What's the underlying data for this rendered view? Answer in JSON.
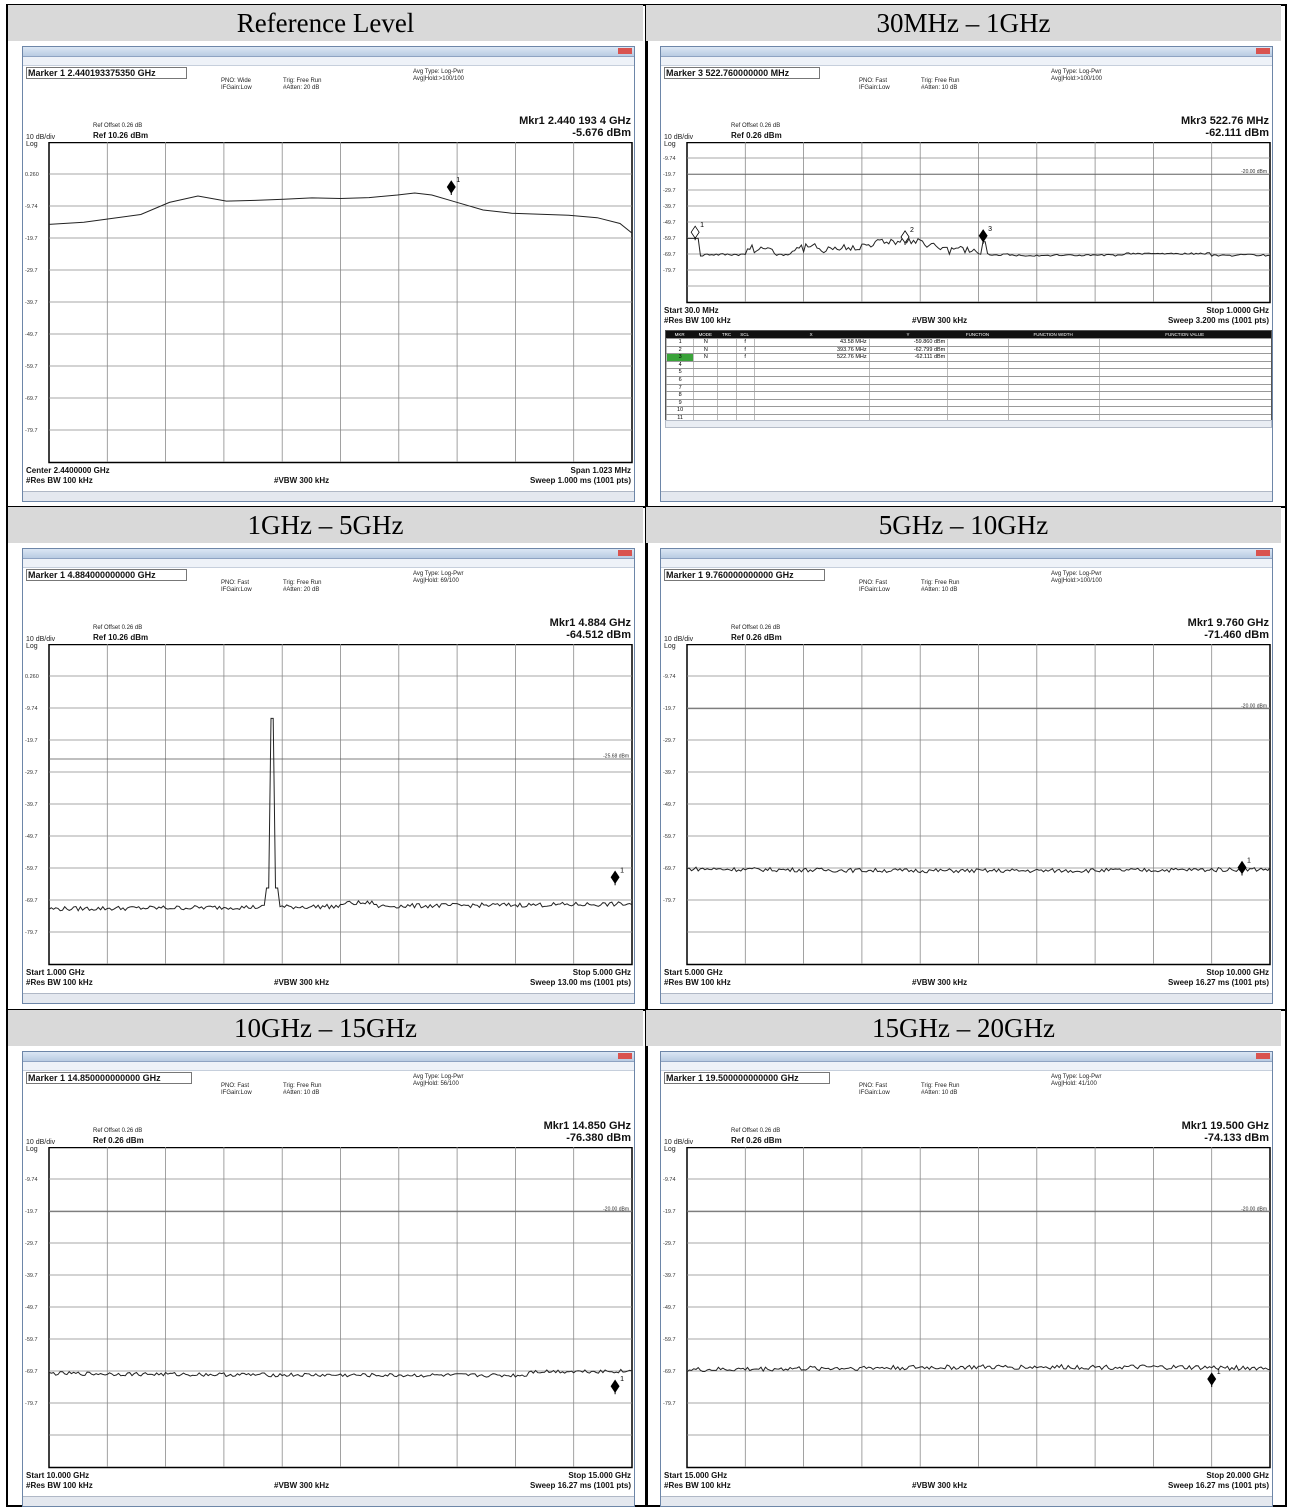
{
  "panels": [
    {
      "id": "ref",
      "header": "Reference Level",
      "marker_field": "Marker 1 2.440193375350 GHz",
      "pno": "PNO: Wide",
      "ifgain": "IFGain:Low",
      "trig": "Trig: Free Run",
      "atten": "#Atten: 20 dB",
      "avg_type": "Avg Type: Log-Pwr",
      "avg_hold": "Avg|Hold:>100/100",
      "ref_offset": "Ref Offset 0.26 dB",
      "scale": "10 dB/div",
      "ref": "Ref 10.26 dBm",
      "log": "Log",
      "mkr_freq": "Mkr1 2.440 193 4 GHz",
      "mkr_amp": "-5.676 dBm",
      "foot_left1": "Center 2.4400000 GHz",
      "foot_left2": "#Res BW 100 kHz",
      "foot_mid": "#VBW 300 kHz",
      "foot_right1": "Span 1.023 MHz",
      "foot_right2": "Sweep  1.000 ms (1001 pts)",
      "yticks": [
        "0.260",
        "-9.74",
        "-19.7",
        "-29.7",
        "-39.7",
        "-49.7",
        "-59.7",
        "-69.7",
        "-79.7"
      ],
      "limit_label": "",
      "limit_db": null,
      "chart_data": {
        "type": "line",
        "y_top_db": 10.26,
        "db_per_div": 10,
        "x_unit": "MHz offset from center",
        "trace_points": [
          [
            -0.511,
            -15.5
          ],
          [
            -0.45,
            -14.8
          ],
          [
            -0.4,
            -13.6
          ],
          [
            -0.35,
            -12.4
          ],
          [
            -0.3,
            -8.6
          ],
          [
            -0.25,
            -6.6
          ],
          [
            -0.2,
            -8.2
          ],
          [
            -0.15,
            -8.0
          ],
          [
            -0.1,
            -7.6
          ],
          [
            -0.05,
            -7.2
          ],
          [
            0.0,
            -7.4
          ],
          [
            0.05,
            -7.1
          ],
          [
            0.1,
            -6.3
          ],
          [
            0.13,
            -5.68
          ],
          [
            0.16,
            -6.3
          ],
          [
            0.2,
            -8.4
          ],
          [
            0.25,
            -11.0
          ],
          [
            0.3,
            -12.0
          ],
          [
            0.35,
            -12.3
          ],
          [
            0.4,
            -12.6
          ],
          [
            0.45,
            -13.4
          ],
          [
            0.49,
            -15.2
          ],
          [
            0.511,
            -18.2
          ]
        ],
        "markers": [
          {
            "n": "1",
            "x_frac": 0.69,
            "db": -5.676
          }
        ]
      }
    },
    {
      "id": "s1",
      "header": "30MHz – 1GHz",
      "marker_field": "Marker 3 522.760000000 MHz",
      "pno": "PNO: Fast",
      "ifgain": "IFGain:Low",
      "trig": "Trig: Free Run",
      "atten": "#Atten: 10 dB",
      "avg_type": "Avg Type: Log-Pwr",
      "avg_hold": "Avg|Hold:>100/100",
      "ref_offset": "Ref Offset 0.26 dB",
      "scale": "10 dB/div",
      "ref": "Ref 0.26 dBm",
      "log": "Log",
      "mkr_freq": "Mkr3 522.76 MHz",
      "mkr_amp": "-62.111 dBm",
      "foot_left1": "Start 30.0 MHz",
      "foot_left2": "#Res BW 100 kHz",
      "foot_mid": "#VBW 300 kHz",
      "foot_right1": "Stop 1.0000 GHz",
      "foot_right2": "Sweep  3.200 ms (1001 pts)",
      "yticks": [
        "-9.74",
        "-19.7",
        "-29.7",
        "-39.7",
        "-49.7",
        "-59.7",
        "-69.7",
        "-79.7"
      ],
      "limit_label": "-20.00 dBm",
      "limit_db": -20,
      "markers": [
        {
          "n": "1",
          "x_frac": 0.014,
          "db": -59.86
        },
        {
          "n": "2",
          "x_frac": 0.374,
          "db": -62.799
        },
        {
          "n": "3",
          "x_frac": 0.508,
          "db": -62.111
        }
      ],
      "table": {
        "headers": [
          "MKR",
          "MODE",
          "TRC",
          "SCL",
          "X",
          "Y",
          "FUNCTION",
          "FUNCTION WIDTH",
          "FUNCTION VALUE"
        ],
        "rows": [
          [
            "1",
            "N",
            "",
            "f",
            "43.58 MHz",
            "-59.860 dBm",
            "",
            "",
            ""
          ],
          [
            "2",
            "N",
            "",
            "f",
            "393.76 MHz",
            "-62.799 dBm",
            "",
            "",
            ""
          ],
          [
            "3",
            "N",
            "",
            "f",
            "522.76 MHz",
            "-62.111 dBm",
            "",
            "",
            ""
          ],
          [
            "4",
            "",
            "",
            "",
            "",
            "",
            "",
            "",
            ""
          ],
          [
            "5",
            "",
            "",
            "",
            "",
            "",
            "",
            "",
            ""
          ],
          [
            "6",
            "",
            "",
            "",
            "",
            "",
            "",
            "",
            ""
          ],
          [
            "7",
            "",
            "",
            "",
            "",
            "",
            "",
            "",
            ""
          ],
          [
            "8",
            "",
            "",
            "",
            "",
            "",
            "",
            "",
            ""
          ],
          [
            "9",
            "",
            "",
            "",
            "",
            "",
            "",
            "",
            ""
          ],
          [
            "10",
            "",
            "",
            "",
            "",
            "",
            "",
            "",
            ""
          ],
          [
            "11",
            "",
            "",
            "",
            "",
            "",
            "",
            "",
            ""
          ]
        ]
      }
    },
    {
      "id": "s2",
      "header": "1GHz – 5GHz",
      "marker_field": "Marker 1 4.884000000000 GHz",
      "pno": "PNO: Fast",
      "ifgain": "IFGain:Low",
      "trig": "Trig: Free Run",
      "atten": "#Atten: 20 dB",
      "avg_type": "Avg Type: Log-Pwr",
      "avg_hold": "Avg|Hold: 69/100",
      "ref_offset": "Ref Offset 0.26 dB",
      "scale": "10 dB/div",
      "ref": "Ref 10.26 dBm",
      "log": "Log",
      "mkr_freq": "Mkr1 4.884 GHz",
      "mkr_amp": "-64.512 dBm",
      "foot_left1": "Start 1.000 GHz",
      "foot_left2": "#Res BW 100 kHz",
      "foot_mid": "#VBW 300 kHz",
      "foot_right1": "Stop 5.000 GHz",
      "foot_right2": "Sweep  13.00 ms (1001 pts)",
      "yticks": [
        "0.260",
        "-9.74",
        "-19.7",
        "-29.7",
        "-39.7",
        "-49.7",
        "-59.7",
        "-69.7",
        "-79.7"
      ],
      "limit_label": "-25.68 dBm",
      "limit_db": -25.68,
      "markers": [
        {
          "n": "1",
          "x_frac": 0.971,
          "db": -64.512
        }
      ]
    },
    {
      "id": "s3",
      "header": "5GHz – 10GHz",
      "marker_field": "Marker 1 9.760000000000 GHz",
      "pno": "PNO: Fast",
      "ifgain": "IFGain:Low",
      "trig": "Trig: Free Run",
      "atten": "#Atten: 10 dB",
      "avg_type": "Avg Type: Log-Pwr",
      "avg_hold": "Avg|Hold:>100/100",
      "ref_offset": "Ref Offset 0.26 dB",
      "scale": "10 dB/div",
      "ref": "Ref 0.26 dBm",
      "log": "Log",
      "mkr_freq": "Mkr1 9.760 GHz",
      "mkr_amp": "-71.460 dBm",
      "foot_left1": "Start 5.000 GHz",
      "foot_left2": "#Res BW 100 kHz",
      "foot_mid": "#VBW 300 kHz",
      "foot_right1": "Stop 10.000 GHz",
      "foot_right2": "Sweep  16.27 ms (1001 pts)",
      "yticks": [
        "-9.74",
        "-19.7",
        "-29.7",
        "-39.7",
        "-49.7",
        "-59.7",
        "-69.7",
        "-79.7"
      ],
      "limit_label": "-20.00 dBm",
      "limit_db": -20,
      "markers": [
        {
          "n": "1",
          "x_frac": 0.952,
          "db": -71.46
        }
      ]
    },
    {
      "id": "s4",
      "header": "10GHz – 15GHz",
      "marker_field": "Marker 1 14.850000000000 GHz",
      "pno": "PNO: Fast",
      "ifgain": "IFGain:Low",
      "trig": "Trig: Free Run",
      "atten": "#Atten: 10 dB",
      "avg_type": "Avg Type: Log-Pwr",
      "avg_hold": "Avg|Hold: 56/100",
      "ref_offset": "Ref Offset 0.26 dB",
      "scale": "10 dB/div",
      "ref": "Ref 0.26 dBm",
      "log": "Log",
      "mkr_freq": "Mkr1 14.850 GHz",
      "mkr_amp": "-76.380 dBm",
      "foot_left1": "Start 10.000 GHz",
      "foot_left2": "#Res BW 100 kHz",
      "foot_mid": "#VBW 300 kHz",
      "foot_right1": "Stop 15.000 GHz",
      "foot_right2": "Sweep  16.27 ms (1001 pts)",
      "yticks": [
        "-9.74",
        "-19.7",
        "-29.7",
        "-39.7",
        "-49.7",
        "-59.7",
        "-69.7",
        "-79.7"
      ],
      "limit_label": "-20.00 dBm",
      "limit_db": -20,
      "markers": [
        {
          "n": "1",
          "x_frac": 0.971,
          "db": -76.38
        }
      ]
    },
    {
      "id": "s5",
      "header": "15GHz – 20GHz",
      "marker_field": "Marker 1 19.500000000000 GHz",
      "pno": "PNO: Fast",
      "ifgain": "IFGain:Low",
      "trig": "Trig: Free Run",
      "atten": "#Atten: 10 dB",
      "avg_type": "Avg Type: Log-Pwr",
      "avg_hold": "Avg|Hold: 41/100",
      "ref_offset": "Ref Offset 0.26 dB",
      "scale": "10 dB/div",
      "ref": "Ref 0.26 dBm",
      "log": "Log",
      "mkr_freq": "Mkr1 19.500 GHz",
      "mkr_amp": "-74.133 dBm",
      "foot_left1": "Start 15.000 GHz",
      "foot_left2": "#Res BW 100 kHz",
      "foot_mid": "#VBW 300 kHz",
      "foot_right1": "Stop 20.000 GHz",
      "foot_right2": "Sweep  16.27 ms (1001 pts)",
      "yticks": [
        "-9.74",
        "-19.7",
        "-29.7",
        "-39.7",
        "-49.7",
        "-59.7",
        "-69.7",
        "-79.7"
      ],
      "limit_label": "-20.00 dBm",
      "limit_db": -20,
      "markers": [
        {
          "n": "1",
          "x_frac": 0.9,
          "db": -74.133
        }
      ]
    }
  ]
}
